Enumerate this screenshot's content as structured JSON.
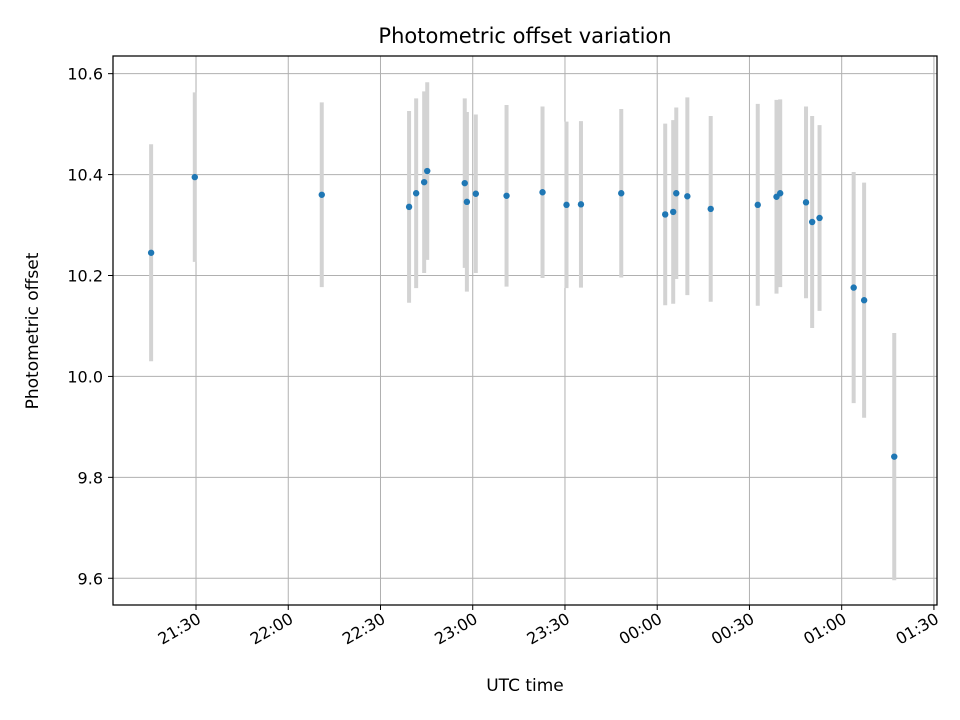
{
  "chart_data": {
    "type": "scatter",
    "title": "Photometric offset variation",
    "xlabel": "UTC time",
    "ylabel": "Photometric offset",
    "x_tick_labels": [
      "21:30",
      "22:00",
      "22:30",
      "23:00",
      "23:30",
      "00:00",
      "00:30",
      "01:00",
      "01:30"
    ],
    "x_tick_minutes": [
      -150,
      -120,
      -90,
      -60,
      -30,
      0,
      30,
      60,
      90
    ],
    "y_ticks": [
      9.6,
      9.8,
      10.0,
      10.2,
      10.4,
      10.6
    ],
    "y_tick_labels": [
      "9.6",
      "9.8",
      "10.0",
      "10.2",
      "10.4",
      "10.6"
    ],
    "xlim_minutes": [
      -177,
      91
    ],
    "ylim": [
      9.547,
      10.635
    ],
    "grid": true,
    "marker_color": "#1f77b4",
    "errorbar_color": "#d3d3d3",
    "points": [
      {
        "t": -164.6,
        "y": 10.245,
        "err": 0.215
      },
      {
        "t": -150.4,
        "y": 10.395,
        "err": 0.168
      },
      {
        "t": -109.1,
        "y": 10.36,
        "err": 0.183
      },
      {
        "t": -80.7,
        "y": 10.336,
        "err": 0.19
      },
      {
        "t": -78.4,
        "y": 10.363,
        "err": 0.188
      },
      {
        "t": -75.8,
        "y": 10.385,
        "err": 0.18
      },
      {
        "t": -74.8,
        "y": 10.407,
        "err": 0.176
      },
      {
        "t": -62.6,
        "y": 10.383,
        "err": 0.168
      },
      {
        "t": -61.9,
        "y": 10.346,
        "err": 0.178
      },
      {
        "t": -59.0,
        "y": 10.362,
        "err": 0.157
      },
      {
        "t": -49.0,
        "y": 10.358,
        "err": 0.18
      },
      {
        "t": -37.3,
        "y": 10.365,
        "err": 0.17
      },
      {
        "t": -29.5,
        "y": 10.34,
        "err": 0.165
      },
      {
        "t": -24.8,
        "y": 10.341,
        "err": 0.165
      },
      {
        "t": -11.7,
        "y": 10.363,
        "err": 0.167
      },
      {
        "t": 2.6,
        "y": 10.321,
        "err": 0.18
      },
      {
        "t": 5.2,
        "y": 10.326,
        "err": 0.182
      },
      {
        "t": 6.2,
        "y": 10.363,
        "err": 0.17
      },
      {
        "t": 9.8,
        "y": 10.357,
        "err": 0.196
      },
      {
        "t": 17.4,
        "y": 10.332,
        "err": 0.184
      },
      {
        "t": 32.7,
        "y": 10.34,
        "err": 0.2
      },
      {
        "t": 38.8,
        "y": 10.356,
        "err": 0.192
      },
      {
        "t": 40.0,
        "y": 10.363,
        "err": 0.186
      },
      {
        "t": 48.4,
        "y": 10.345,
        "err": 0.19
      },
      {
        "t": 50.4,
        "y": 10.306,
        "err": 0.21
      },
      {
        "t": 52.8,
        "y": 10.314,
        "err": 0.184
      },
      {
        "t": 63.9,
        "y": 10.176,
        "err": 0.229
      },
      {
        "t": 67.3,
        "y": 10.151,
        "err": 0.233
      },
      {
        "t": 77.1,
        "y": 9.841,
        "err": 0.245
      }
    ]
  }
}
